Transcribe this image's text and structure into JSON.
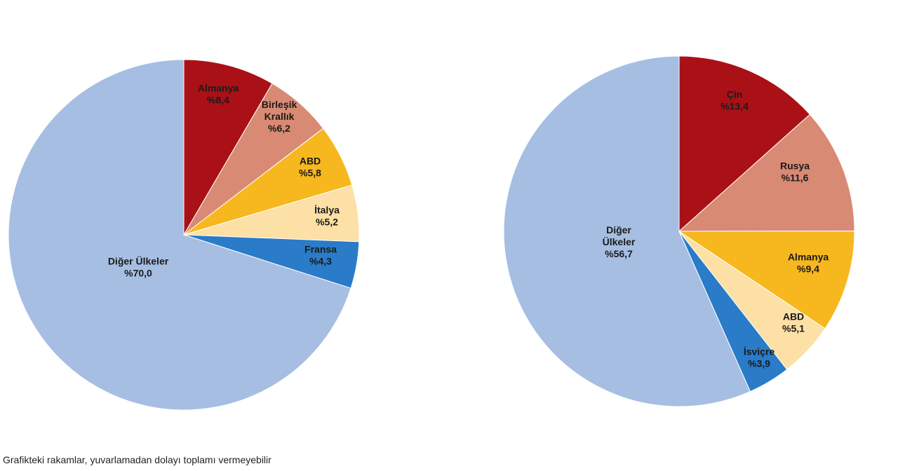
{
  "chart_data": [
    {
      "type": "pie",
      "title": "",
      "slices": [
        {
          "name": "Almanya",
          "value": 8.4,
          "label": "%8,4",
          "color": "#aa1117"
        },
        {
          "name": "Birleşik Krallık",
          "value": 6.2,
          "label": "%6,2",
          "color": "#d98a74"
        },
        {
          "name": "ABD",
          "value": 5.8,
          "label": "%5,8",
          "color": "#f7b71e"
        },
        {
          "name": "İtalya",
          "value": 5.2,
          "label": "%5,2",
          "color": "#fde0a6"
        },
        {
          "name": "Fransa",
          "value": 4.3,
          "label": "%4,3",
          "color": "#2a7bc8"
        },
        {
          "name": "Diğer Ülkeler",
          "value": 70.0,
          "label": "%70,0",
          "color": "#a6bee2"
        }
      ]
    },
    {
      "type": "pie",
      "title": "",
      "slices": [
        {
          "name": "Çin",
          "value": 13.4,
          "label": "%13,4",
          "color": "#aa1117"
        },
        {
          "name": "Rusya",
          "value": 11.6,
          "label": "%11,6",
          "color": "#d98a74"
        },
        {
          "name": "Almanya",
          "value": 9.4,
          "label": "%9,4",
          "color": "#f7b71e"
        },
        {
          "name": "ABD",
          "value": 5.1,
          "label": "%5,1",
          "color": "#fde0a6"
        },
        {
          "name": "İsviçre",
          "value": 3.9,
          "label": "%3,9",
          "color": "#2a7bc8"
        },
        {
          "name": "Diğer Ülkeler",
          "value": 56.7,
          "label": "%56,7",
          "color": "#a6bee2"
        }
      ]
    }
  ],
  "footnote": "Grafikteki rakamlar, yuvarlamadan dolayı toplamı vermeyebilir"
}
